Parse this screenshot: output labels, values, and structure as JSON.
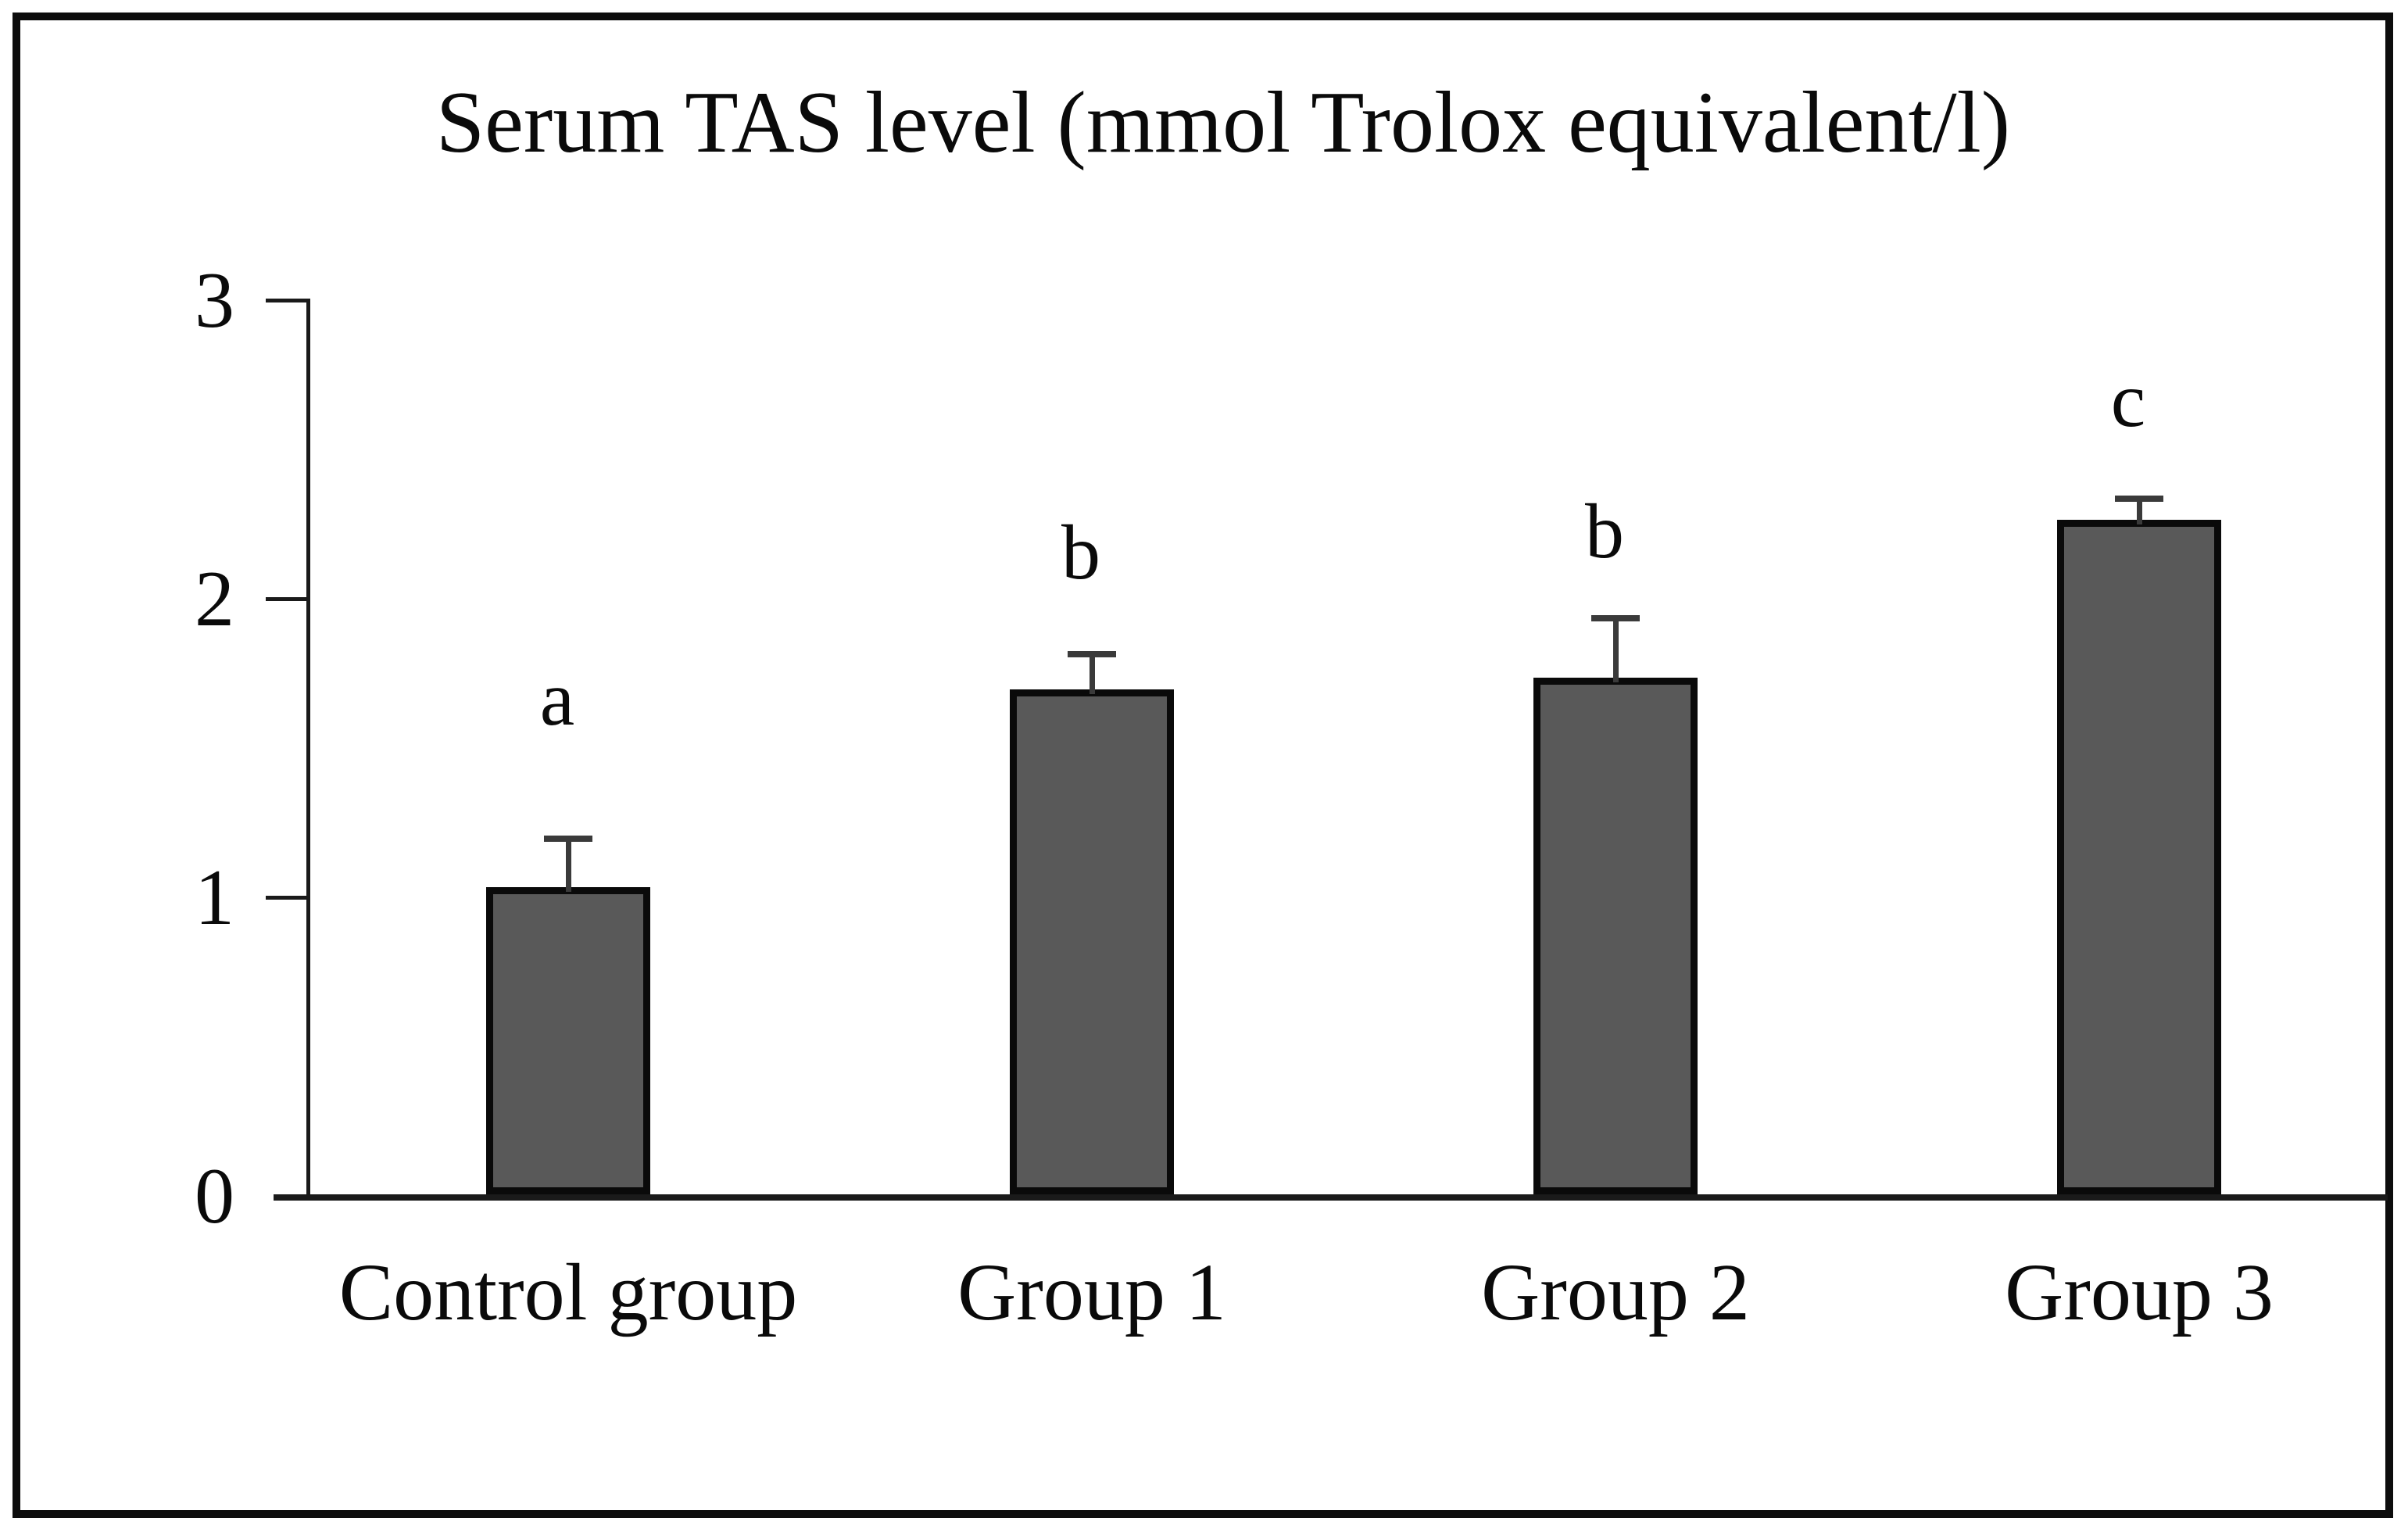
{
  "figure": {
    "title": "Serum TAS level (mmol Trolox equivalent/l)"
  },
  "chart_data": {
    "type": "bar",
    "title": "Serum TAS level (mmol Trolox equivalent/l)",
    "xlabel": "",
    "ylabel": "",
    "categories": [
      "Control group",
      "Group 1",
      "Group 2",
      "Group 3"
    ],
    "values": [
      1.03,
      1.69,
      1.73,
      2.26
    ],
    "error_plus": [
      0.16,
      0.12,
      0.2,
      0.07
    ],
    "significance_letters": [
      "a",
      "b",
      "b",
      "c"
    ],
    "letter_y": [
      1.66,
      2.15,
      2.22,
      2.66
    ],
    "yticks": [
      0,
      1,
      2,
      3
    ],
    "ytick_labels": [
      "0",
      "1",
      "2",
      "3"
    ],
    "ylim": [
      0,
      3
    ],
    "grid": false,
    "legend_position": "none",
    "colors": {
      "bar_fill": "#595959",
      "bar_border": "#0a0a0a",
      "error_bar": "#3a3a3a",
      "axis": "#1a1a1a",
      "text": "#0a0a0a",
      "background": "#ffffff",
      "figure_border": "#0d0d0d"
    }
  }
}
